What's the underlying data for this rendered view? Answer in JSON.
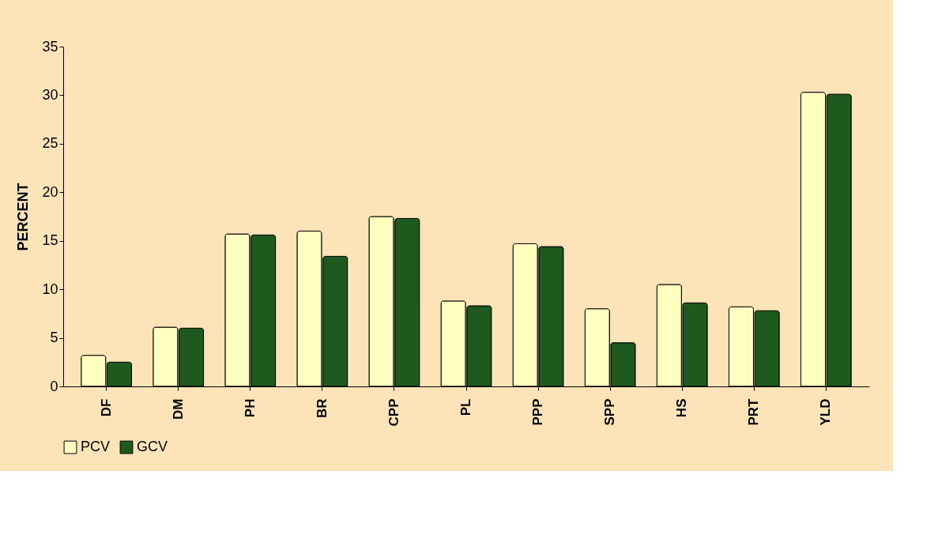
{
  "chart_data": {
    "type": "bar",
    "ylabel": "PERCENT",
    "categories": [
      "DF",
      "DM",
      "PH",
      "BR",
      "CPP",
      "PL",
      "PPP",
      "SPP",
      "HS",
      "PRT",
      "YLD"
    ],
    "series": [
      {
        "name": "PCV",
        "color": "#ffffc0",
        "values": [
          3.2,
          6.1,
          15.7,
          16.0,
          17.5,
          8.8,
          14.7,
          8.0,
          10.5,
          8.2,
          30.3
        ]
      },
      {
        "name": "GCV",
        "color": "#1e5a1e",
        "values": [
          2.5,
          6.0,
          15.6,
          13.4,
          17.3,
          8.3,
          14.4,
          4.5,
          8.6,
          7.8,
          30.1
        ]
      }
    ],
    "ylim": [
      0,
      35
    ],
    "yticks": [
      0,
      5,
      10,
      15,
      20,
      25,
      30,
      35
    ],
    "grid": false,
    "legend": "bottom"
  }
}
